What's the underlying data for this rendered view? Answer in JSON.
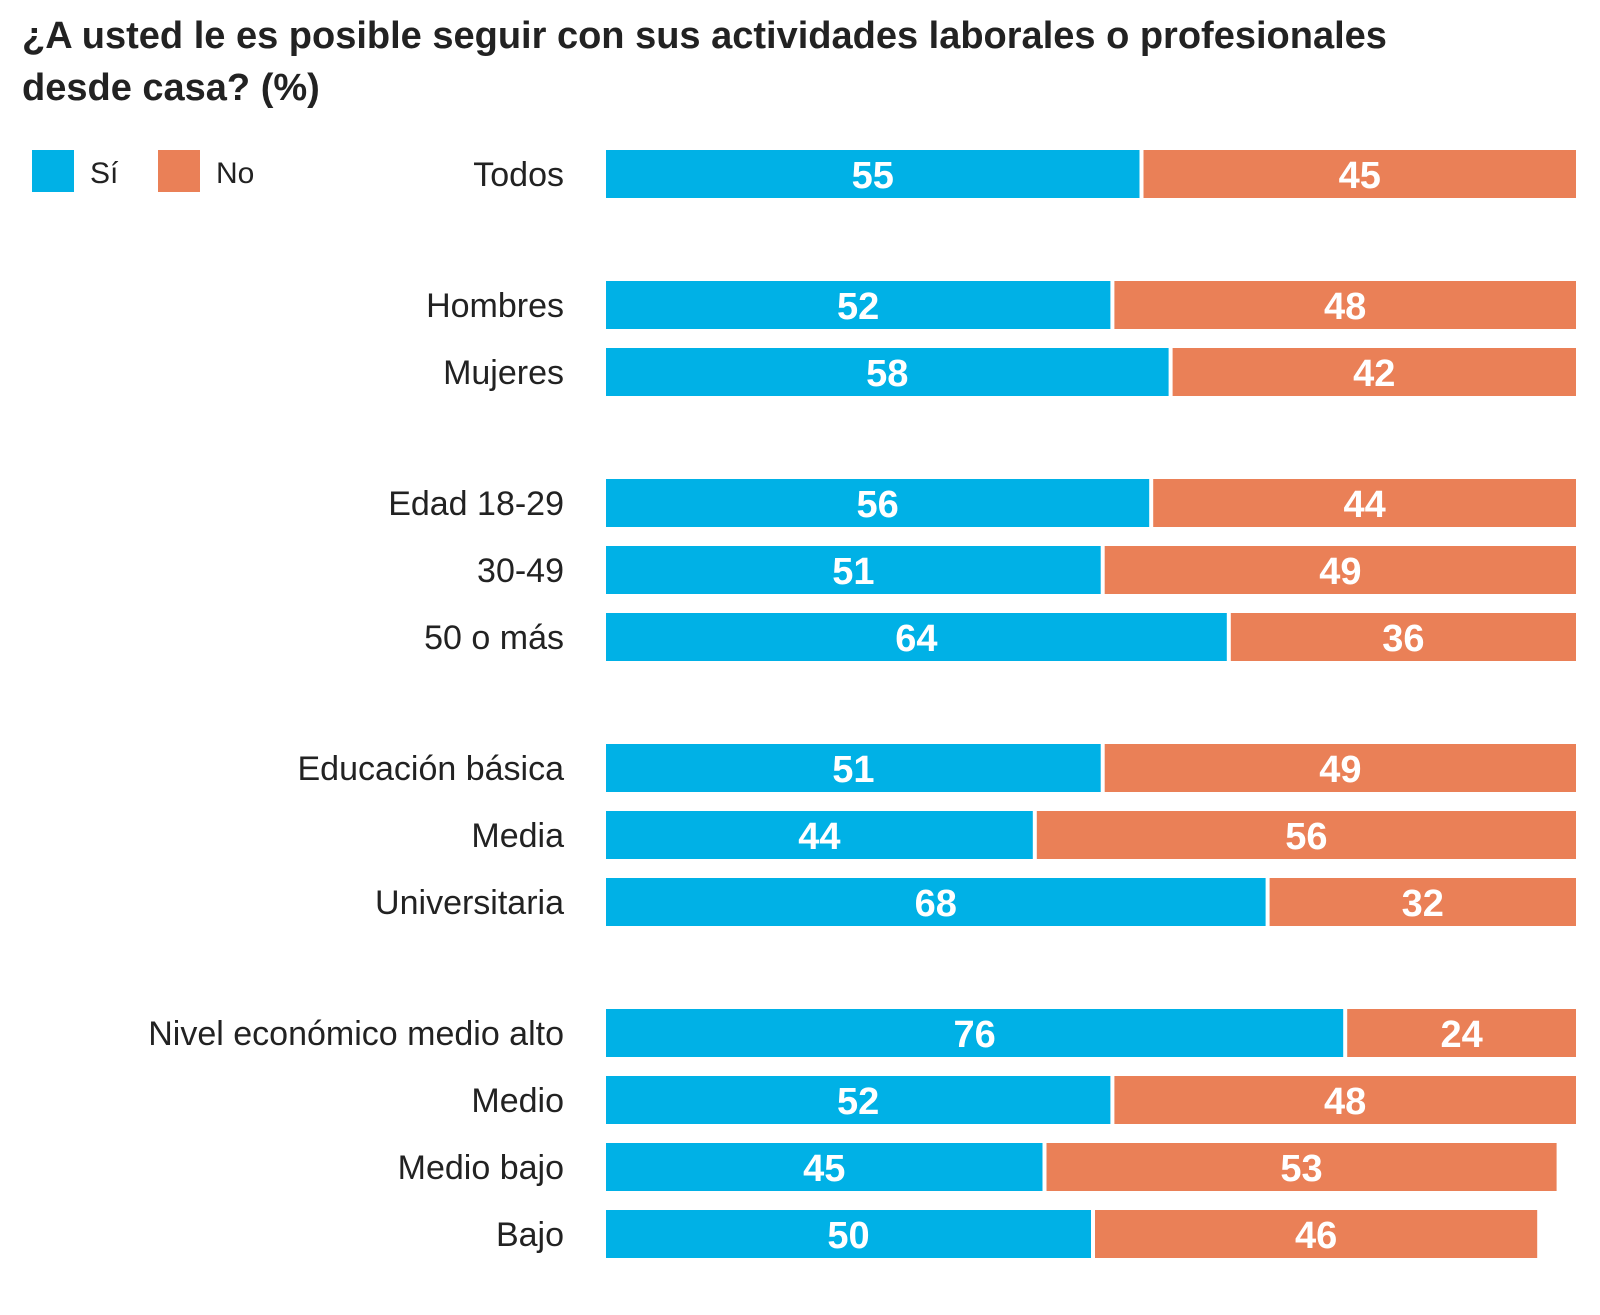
{
  "chart_data": {
    "type": "bar",
    "orientation": "horizontal",
    "stacked": true,
    "title": "¿A usted le es posible seguir con sus actividades laborales o profesionales desde casa?  (%)",
    "legend_position": "top-left",
    "grid": false,
    "xlim": [
      0,
      100
    ],
    "categories": [
      "Todos",
      "Hombres",
      "Mujeres",
      "Edad 18-29",
      "30-49",
      "50 o más",
      "Educación básica",
      "Media",
      "Universitaria",
      "Nivel económico medio alto",
      "Medio",
      "Medio bajo",
      "Bajo"
    ],
    "groups": [
      [
        0
      ],
      [
        1,
        2
      ],
      [
        3,
        4,
        5
      ],
      [
        6,
        7,
        8
      ],
      [
        9,
        10,
        11,
        12
      ]
    ],
    "series": [
      {
        "name": "Sí",
        "color": "#00B1E6",
        "values": [
          55,
          52,
          58,
          56,
          51,
          64,
          51,
          44,
          68,
          76,
          52,
          45,
          50
        ]
      },
      {
        "name": "No",
        "color": "#EA8057",
        "values": [
          45,
          48,
          42,
          44,
          49,
          36,
          49,
          56,
          32,
          24,
          48,
          53,
          46
        ]
      }
    ]
  }
}
